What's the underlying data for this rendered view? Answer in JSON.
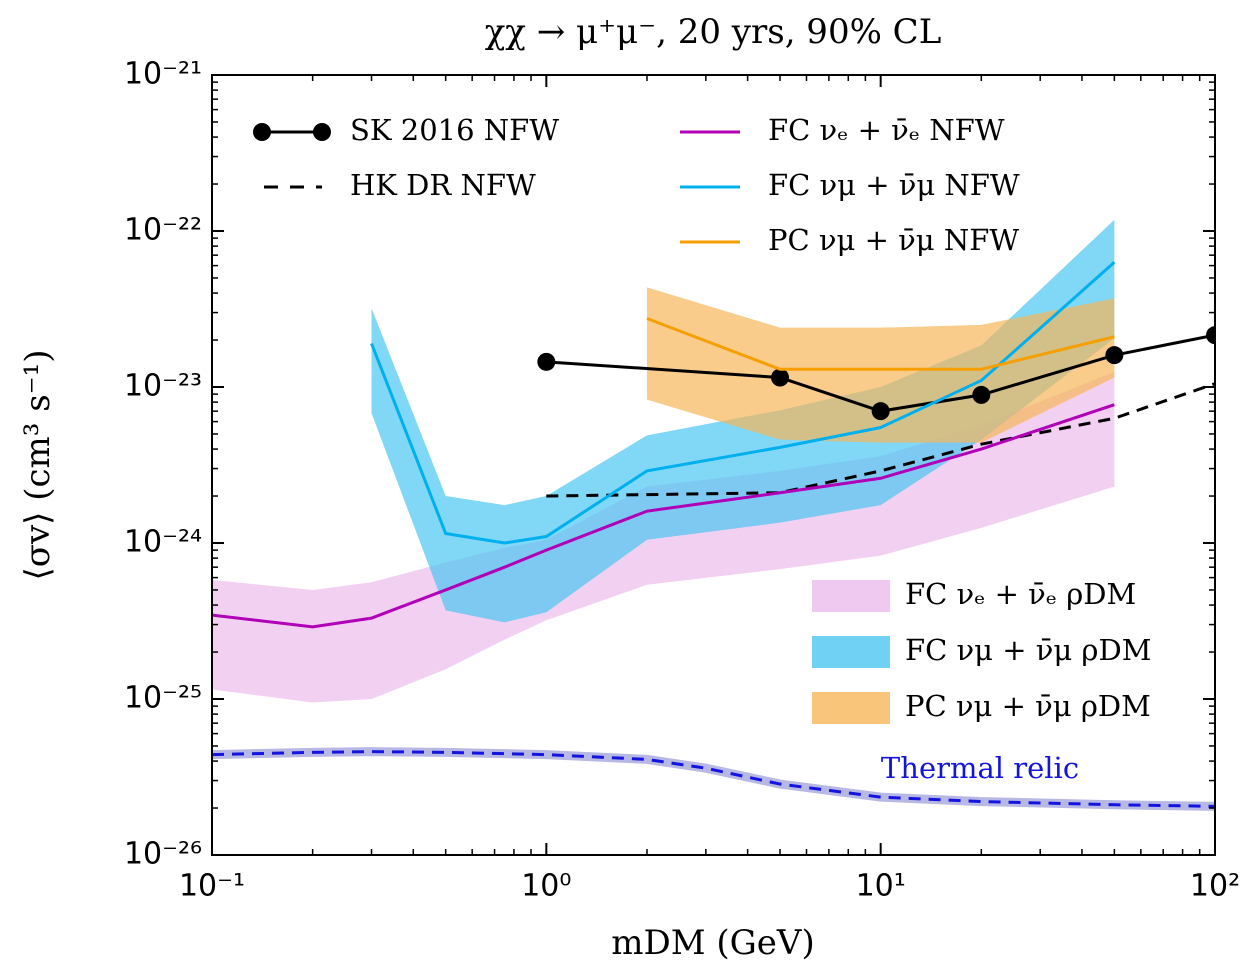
{
  "chart_data": {
    "type": "line",
    "title": "χχ → μ⁺μ⁻,  20 yrs,  90% CL",
    "x_label": "mDM (GeV)",
    "y_label": "⟨σv⟩ (cm³ s⁻¹)",
    "log_x": true,
    "log_y": true,
    "xlim": [
      0.1,
      100
    ],
    "ylim": [
      1e-26,
      1e-21
    ],
    "xticks": [
      {
        "value": 0.1,
        "label": "10⁻¹"
      },
      {
        "value": 1,
        "label": "10⁰"
      },
      {
        "value": 10,
        "label": "10¹"
      },
      {
        "value": 100,
        "label": "10²"
      }
    ],
    "yticks": [
      {
        "value": 1e-26,
        "label": "10⁻²⁶"
      },
      {
        "value": 1e-25,
        "label": "10⁻²⁵"
      },
      {
        "value": 1e-24,
        "label": "10⁻²⁴"
      },
      {
        "value": 1e-23,
        "label": "10⁻²³"
      },
      {
        "value": 1e-22,
        "label": "10⁻²²"
      },
      {
        "value": 1e-21,
        "label": "10⁻²¹"
      }
    ],
    "bands": [
      {
        "name": "FC νₑ + ν̄ₑ ρDM",
        "color": "#ecbcec",
        "x": [
          0.1,
          0.2,
          0.3,
          0.5,
          0.75,
          1,
          2,
          5,
          10,
          20,
          50
        ],
        "low": [
          1.15e-25,
          9.5e-26,
          1e-25,
          1.55e-25,
          2.4e-25,
          3.2e-25,
          5.4e-25,
          6.8e-25,
          8.3e-25,
          1.25e-24,
          2.3e-24
        ],
        "high": [
          5.8e-25,
          5e-25,
          5.6e-25,
          7.5e-25,
          9.3e-25,
          1.05e-24,
          2.3e-24,
          2.9e-24,
          3.6e-24,
          5.7e-24,
          1.25e-23
        ]
      },
      {
        "name": "FC νμ + ν̄μ ρDM",
        "color": "#4cc6f2",
        "x": [
          0.3,
          0.5,
          0.75,
          1,
          2,
          5,
          10,
          20,
          50
        ],
        "low": [
          6.8e-24,
          3.7e-25,
          3.1e-25,
          3.6e-25,
          1.05e-24,
          1.35e-24,
          1.75e-24,
          4.6e-24,
          2.05e-23
        ],
        "high": [
          3.2e-23,
          2e-24,
          1.75e-24,
          2e-24,
          4.9e-24,
          7.1e-24,
          1e-23,
          1.85e-23,
          1.18e-22
        ]
      },
      {
        "name": "PC νμ + ν̄μ ρDM",
        "color": "#f7b65a",
        "x": [
          2,
          5,
          10,
          20,
          50
        ],
        "low": [
          8.3e-24,
          4.6e-24,
          4.4e-24,
          4.4e-24,
          1.15e-23
        ],
        "high": [
          4.35e-23,
          2.4e-23,
          2.4e-23,
          2.5e-23,
          3.7e-23
        ]
      }
    ],
    "series": [
      {
        "name": "SK 2016 NFW",
        "color": "#000000",
        "dash": false,
        "marker": true,
        "legend": true,
        "x": [
          1,
          5,
          10,
          20,
          50,
          100
        ],
        "values": [
          1.45e-23,
          1.15e-23,
          7e-24,
          8.9e-24,
          1.6e-23,
          2.15e-23
        ]
      },
      {
        "name": "HK DR NFW",
        "color": "#000000",
        "dash": true,
        "marker": false,
        "legend": true,
        "x": [
          1,
          5,
          10,
          20,
          50,
          100
        ],
        "values": [
          2e-24,
          2.1e-24,
          2.9e-24,
          4.3e-24,
          6.3e-24,
          1.05e-23
        ]
      },
      {
        "name": "FC νₑ + ν̄ₑ NFW",
        "color": "#b000b8",
        "dash": false,
        "marker": false,
        "legend": true,
        "x": [
          0.1,
          0.2,
          0.3,
          0.5,
          0.75,
          1,
          2,
          5,
          10,
          20,
          50
        ],
        "values": [
          3.45e-25,
          2.9e-25,
          3.3e-25,
          5e-25,
          7e-25,
          9e-25,
          1.6e-24,
          2.1e-24,
          2.6e-24,
          4e-24,
          7.7e-24
        ]
      },
      {
        "name": "FC νμ + ν̄μ NFW",
        "color": "#00b0ee",
        "dash": false,
        "marker": false,
        "legend": true,
        "x": [
          0.3,
          0.5,
          0.75,
          1,
          2,
          5,
          10,
          20,
          50
        ],
        "values": [
          1.9e-23,
          1.15e-24,
          1e-24,
          1.1e-24,
          2.9e-24,
          4.1e-24,
          5.5e-24,
          1.1e-23,
          6.3e-23
        ]
      },
      {
        "name": "PC νμ + ν̄μ NFW",
        "color": "#f5a000",
        "dash": false,
        "marker": false,
        "legend": true,
        "x": [
          2,
          5,
          10,
          20,
          50
        ],
        "values": [
          2.75e-23,
          1.3e-23,
          1.3e-23,
          1.3e-23,
          2.1e-23
        ]
      },
      {
        "name": "Thermal relic",
        "color": "#1414e0",
        "dash": true,
        "marker": false,
        "legend": false,
        "x": [
          0.1,
          0.2,
          0.3,
          0.5,
          1,
          2,
          3,
          5,
          10,
          20,
          50,
          100
        ],
        "values": [
          4.4e-26,
          4.55e-26,
          4.6e-26,
          4.55e-26,
          4.4e-26,
          4.1e-26,
          3.6e-26,
          2.85e-26,
          2.35e-26,
          2.2e-26,
          2.1e-26,
          2.05e-26
        ]
      }
    ]
  }
}
